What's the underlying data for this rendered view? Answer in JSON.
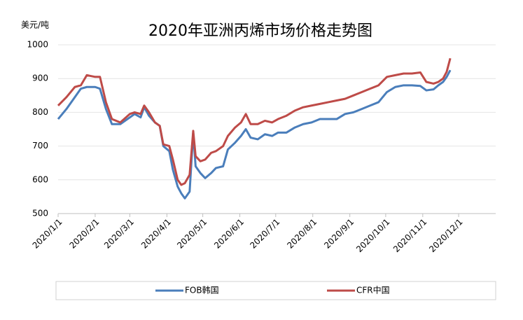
{
  "chart_data": {
    "type": "line",
    "title": "2020年亚洲丙烯市场价格走势图",
    "y_label": "美元/吨",
    "x": [
      "2020/1/1",
      "2020/1/8",
      "2020/1/15",
      "2020/1/20",
      "2020/1/25",
      "2020/2/1",
      "2020/2/5",
      "2020/2/10",
      "2020/2/15",
      "2020/2/22",
      "2020/3/1",
      "2020/3/5",
      "2020/3/10",
      "2020/3/13",
      "2020/3/17",
      "2020/3/22",
      "2020/3/26",
      "2020/3/29",
      "2020/4/3",
      "2020/4/6",
      "2020/4/10",
      "2020/4/13",
      "2020/4/16",
      "2020/4/20",
      "2020/4/23",
      "2020/4/25",
      "2020/4/29",
      "2020/5/3",
      "2020/5/8",
      "2020/5/12",
      "2020/5/18",
      "2020/5/22",
      "2020/5/28",
      "2020/6/2",
      "2020/6/6",
      "2020/6/10",
      "2020/6/16",
      "2020/6/22",
      "2020/6/28",
      "2020/7/3",
      "2020/7/10",
      "2020/7/17",
      "2020/7/24",
      "2020/7/31",
      "2020/8/7",
      "2020/8/14",
      "2020/8/21",
      "2020/8/28",
      "2020/9/4",
      "2020/9/11",
      "2020/9/18",
      "2020/9/25",
      "2020/10/2",
      "2020/10/9",
      "2020/10/16",
      "2020/10/23",
      "2020/10/30",
      "2020/11/4",
      "2020/11/10",
      "2020/11/14",
      "2020/11/18",
      "2020/11/21",
      "2020/11/24"
    ],
    "series": [
      {
        "name": "FOB韩国",
        "color": "#4a7ebb",
        "values": [
          780,
          810,
          845,
          870,
          875,
          875,
          870,
          810,
          765,
          765,
          785,
          795,
          785,
          815,
          790,
          770,
          760,
          700,
          685,
          630,
          580,
          560,
          545,
          565,
          740,
          640,
          620,
          605,
          620,
          635,
          640,
          690,
          710,
          730,
          750,
          725,
          720,
          735,
          730,
          740,
          740,
          755,
          765,
          770,
          780,
          780,
          780,
          795,
          800,
          810,
          820,
          830,
          860,
          875,
          880,
          880,
          878,
          865,
          868,
          880,
          890,
          905,
          925
        ]
      },
      {
        "name": "CFR中国",
        "color": "#be4b48",
        "values": [
          820,
          845,
          875,
          880,
          910,
          905,
          905,
          830,
          780,
          770,
          795,
          800,
          795,
          820,
          800,
          770,
          760,
          705,
          700,
          660,
          600,
          585,
          590,
          615,
          745,
          670,
          655,
          660,
          680,
          685,
          700,
          730,
          755,
          770,
          795,
          765,
          765,
          775,
          770,
          780,
          790,
          805,
          815,
          820,
          825,
          830,
          835,
          840,
          850,
          860,
          870,
          880,
          905,
          910,
          915,
          915,
          918,
          890,
          885,
          890,
          900,
          920,
          960
        ]
      }
    ],
    "xlim": [
      "2020/1/1",
      "2021/1/1"
    ],
    "xticks": [
      "2020/1/1",
      "2020/2/1",
      "2020/3/1",
      "2020/4/1",
      "2020/5/1",
      "2020/6/1",
      "2020/7/1",
      "2020/8/1",
      "2020/9/1",
      "2020/10/1",
      "2020/11/1",
      "2020/12/1"
    ],
    "ylim": [
      500,
      1000
    ],
    "yticks": [
      500,
      600,
      700,
      800,
      900,
      1000
    ],
    "grid": true,
    "legend": "bottom"
  }
}
